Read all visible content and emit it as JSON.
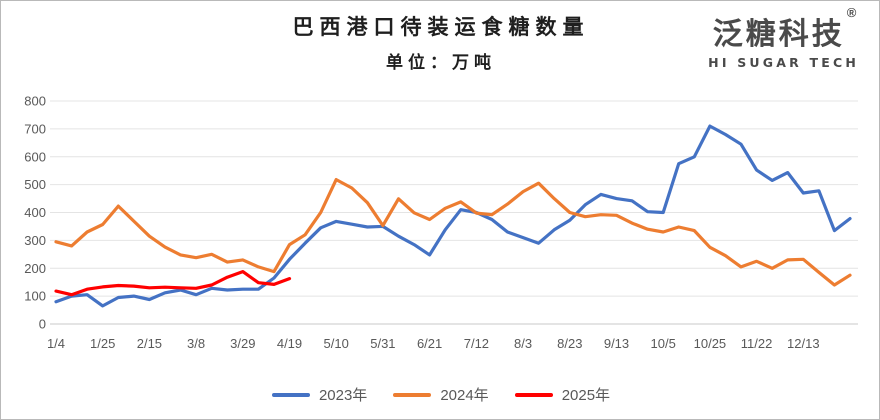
{
  "header": {
    "title": "巴西港口待装运食糖数量",
    "subtitle": "单位：万吨"
  },
  "logo": {
    "name": "泛糖科技",
    "registered": "®",
    "tagline": "HI SUGAR TECH"
  },
  "chart_data": {
    "type": "line",
    "title": "巴西港口待装运食糖数量",
    "unit": "万吨",
    "x_labels": [
      "1/4",
      "1/25",
      "2/15",
      "3/8",
      "3/29",
      "4/19",
      "5/10",
      "5/31",
      "6/21",
      "7/12",
      "8/3",
      "8/23",
      "9/13",
      "10/5",
      "10/25",
      "11/22",
      "12/13"
    ],
    "label_every_n_points": 3,
    "y_ticks": [
      0,
      100,
      200,
      300,
      400,
      500,
      600,
      700,
      800
    ],
    "ylim": [
      0,
      800
    ],
    "grid": "horizontal",
    "legend_position": "bottom",
    "series": [
      {
        "name": "2023年",
        "color": "#4472C4",
        "values": [
          80,
          100,
          105,
          65,
          95,
          100,
          88,
          112,
          122,
          105,
          128,
          122,
          125,
          125,
          165,
          232,
          290,
          345,
          368,
          358,
          348,
          350,
          315,
          285,
          248,
          338,
          410,
          400,
          375,
          330,
          310,
          290,
          338,
          372,
          428,
          465,
          450,
          442,
          403,
          400,
          575,
          600,
          710,
          680,
          645,
          552,
          515,
          543,
          470,
          478,
          335,
          378
        ]
      },
      {
        "name": "2024年",
        "color": "#ED7D31",
        "values": [
          295,
          280,
          330,
          357,
          423,
          369,
          315,
          276,
          248,
          238,
          250,
          222,
          230,
          205,
          188,
          285,
          320,
          400,
          518,
          488,
          435,
          353,
          449,
          399,
          375,
          415,
          438,
          398,
          392,
          430,
          475,
          505,
          450,
          400,
          385,
          392,
          390,
          362,
          340,
          330,
          348,
          335,
          275,
          245,
          205,
          225,
          200,
          230,
          232,
          185,
          140,
          175
        ]
      },
      {
        "name": "2025年",
        "color": "#FF0000",
        "values": [
          118,
          105,
          125,
          133,
          138,
          136,
          130,
          132,
          130,
          128,
          140,
          168,
          188,
          148,
          142,
          163
        ]
      }
    ]
  },
  "legend": {
    "items": [
      {
        "label": "2023年",
        "color": "#4472C4"
      },
      {
        "label": "2024年",
        "color": "#ED7D31"
      },
      {
        "label": "2025年",
        "color": "#FF0000"
      }
    ]
  }
}
